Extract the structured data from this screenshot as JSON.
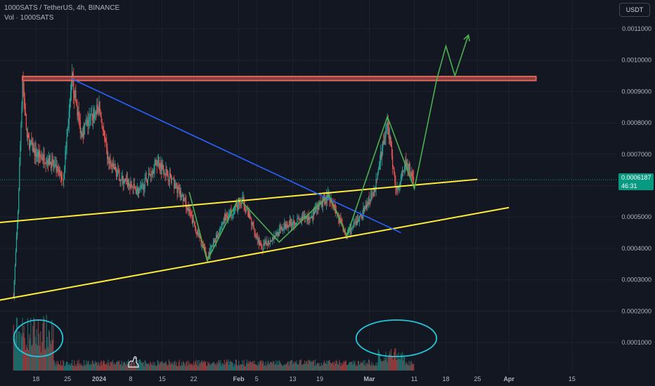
{
  "header": {
    "title": "1000SATS / TetherUS, 4h, BINANCE",
    "volume_label": "Vol · 1000SATS"
  },
  "currency_button": "USDT",
  "price_tag": {
    "price": "0.0006187",
    "countdown": "46:31"
  },
  "colors": {
    "background": "#131722",
    "up": "#26a69a",
    "down": "#ef5350",
    "resistance": "#d9665b",
    "trend_blue": "#2962ff",
    "trend_yellow": "#ffeb3b",
    "projection_green": "#4caf50",
    "circle": "#26c6da"
  },
  "chart_data": {
    "type": "candlestick",
    "title": "1000SATS / TetherUS, 4h, BINANCE",
    "y_axis": {
      "ticks": [
        "0.0001000",
        "0.0002000",
        "0.0003000",
        "0.0004000",
        "0.0005000",
        "0.0006000",
        "0.0007000",
        "0.0008000",
        "0.0009000",
        "0.0010000",
        "0.0011000"
      ],
      "values": [
        0.0001,
        0.0002,
        0.0003,
        0.0004,
        0.0005,
        0.0006,
        0.0007,
        0.0008,
        0.0009,
        0.001,
        0.0011
      ],
      "range": [
        0,
        0.00115
      ]
    },
    "x_axis": {
      "ticks": [
        "18",
        "25",
        "2024",
        "8",
        "15",
        "22",
        "Feb",
        "5",
        "13",
        "19",
        "Mar",
        "11",
        "18",
        "25",
        "Apr",
        "15"
      ],
      "dates": [
        "2023-12-18",
        "2023-12-25",
        "2024-01-01",
        "2024-01-08",
        "2024-01-15",
        "2024-01-22",
        "2024-02-01",
        "2024-02-05",
        "2024-02-13",
        "2024-02-19",
        "2024-03-01",
        "2024-03-11",
        "2024-03-18",
        "2024-03-25",
        "2024-04-01",
        "2024-04-15"
      ],
      "range": [
        "2023-12-10",
        "2024-04-25"
      ]
    },
    "price_path": [
      {
        "date": "2023-12-13",
        "price": 0.00025
      },
      {
        "date": "2023-12-14",
        "price": 0.00052
      },
      {
        "date": "2023-12-15",
        "price": 0.00094
      },
      {
        "date": "2023-12-16",
        "price": 0.00075
      },
      {
        "date": "2023-12-18",
        "price": 0.0007
      },
      {
        "date": "2023-12-21",
        "price": 0.00068
      },
      {
        "date": "2023-12-24",
        "price": 0.00062
      },
      {
        "date": "2023-12-26",
        "price": 0.00094
      },
      {
        "date": "2023-12-28",
        "price": 0.00077
      },
      {
        "date": "2024-01-01",
        "price": 0.00085
      },
      {
        "date": "2024-01-03",
        "price": 0.00068
      },
      {
        "date": "2024-01-06",
        "price": 0.00062
      },
      {
        "date": "2024-01-10",
        "price": 0.00058
      },
      {
        "date": "2024-01-14",
        "price": 0.00068
      },
      {
        "date": "2024-01-17",
        "price": 0.00062
      },
      {
        "date": "2024-01-20",
        "price": 0.00055
      },
      {
        "date": "2024-01-25",
        "price": 0.00037
      },
      {
        "date": "2024-01-29",
        "price": 0.0005
      },
      {
        "date": "2024-02-02",
        "price": 0.00055
      },
      {
        "date": "2024-02-06",
        "price": 0.0004
      },
      {
        "date": "2024-02-12",
        "price": 0.00048
      },
      {
        "date": "2024-02-17",
        "price": 0.0005
      },
      {
        "date": "2024-02-21",
        "price": 0.00057
      },
      {
        "date": "2024-02-25",
        "price": 0.00044
      },
      {
        "date": "2024-02-28",
        "price": 0.0005
      },
      {
        "date": "2024-03-02",
        "price": 0.00058
      },
      {
        "date": "2024-03-05",
        "price": 0.0008
      },
      {
        "date": "2024-03-07",
        "price": 0.00058
      },
      {
        "date": "2024-03-09",
        "price": 0.00068
      },
      {
        "date": "2024-03-11",
        "price": 0.0006187
      }
    ],
    "current_price": 0.0006187,
    "annotations": {
      "resistance_zone": {
        "from": "2023-12-15",
        "to": "2024-04-07",
        "price_low": 0.000935,
        "price_high": 0.000948
      },
      "descending_trendline": [
        {
          "date": "2023-12-26",
          "price": 0.00094
        },
        {
          "date": "2024-03-08",
          "price": 0.00045
        }
      ],
      "upper_yellow_line": [
        {
          "date": "2023-12-08",
          "price": 0.00048
        },
        {
          "date": "2024-03-25",
          "price": 0.00062
        }
      ],
      "lower_yellow_line": [
        {
          "date": "2023-12-08",
          "price": 0.00023
        },
        {
          "date": "2024-04-01",
          "price": 0.00053
        }
      ],
      "green_zigzag": [
        {
          "date": "2024-01-21",
          "price": 0.00058
        },
        {
          "date": "2024-01-25",
          "price": 0.00036
        },
        {
          "date": "2024-02-01",
          "price": 0.00056
        },
        {
          "date": "2024-02-10",
          "price": 0.00042
        },
        {
          "date": "2024-02-21",
          "price": 0.00057
        },
        {
          "date": "2024-02-25",
          "price": 0.00044
        },
        {
          "date": "2024-03-05",
          "price": 0.00082
        },
        {
          "date": "2024-03-11",
          "price": 0.00059
        },
        {
          "date": "2024-03-16",
          "price": 0.00094
        },
        {
          "date": "2024-03-18",
          "price": 0.001045
        },
        {
          "date": "2024-03-20",
          "price": 0.00095
        },
        {
          "date": "2024-03-23",
          "price": 0.00108
        }
      ],
      "circled_volume_regions": [
        {
          "from": "2023-12-14",
          "to": "2023-12-23"
        },
        {
          "from": "2024-02-28",
          "to": "2024-03-15"
        }
      ]
    },
    "legend": "none",
    "grid": true
  }
}
